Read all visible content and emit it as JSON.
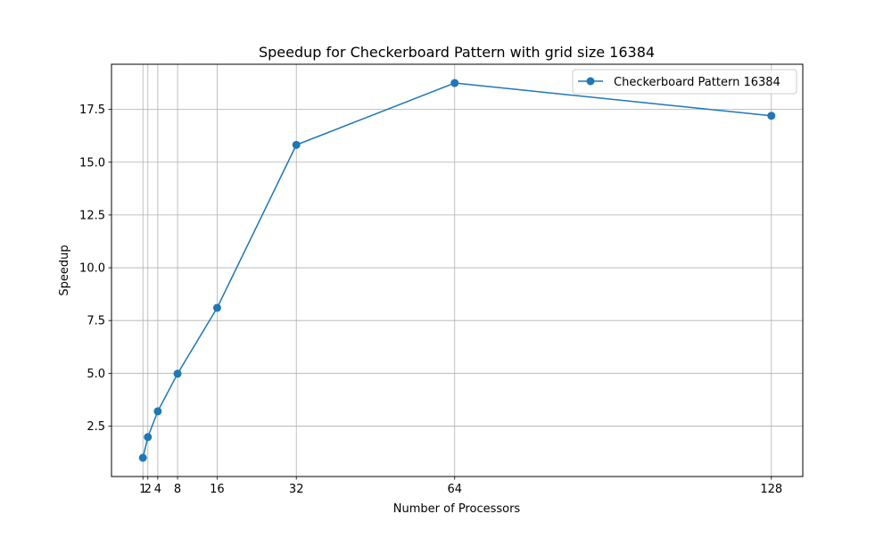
{
  "chart_data": {
    "type": "line",
    "title": "Speedup for Checkerboard Pattern with grid size 16384",
    "xlabel": "Number of Processors",
    "ylabel": "Speedup",
    "x": [
      1,
      2,
      4,
      8,
      16,
      32,
      64,
      128
    ],
    "xticks": [
      1,
      2,
      4,
      8,
      16,
      32,
      64,
      128
    ],
    "xtick_labels": [
      "1",
      "2",
      "4",
      "8",
      "16",
      "32",
      "64",
      "128"
    ],
    "yticks": [
      2.5,
      5.0,
      7.5,
      10.0,
      12.5,
      15.0,
      17.5
    ],
    "ytick_labels": [
      "2.5",
      "5.0",
      "7.5",
      "10.0",
      "12.5",
      "15.0",
      "17.5"
    ],
    "xlim": [
      -5.35,
      134.35
    ],
    "ylim": [
      0.11,
      19.64
    ],
    "grid": true,
    "legend_position": "top-right",
    "series": [
      {
        "name": "Checkerboard Pattern 16384",
        "color": "#1f77b4",
        "marker": "circle",
        "values": [
          1.0,
          1.98,
          3.2,
          4.98,
          8.1,
          15.82,
          18.75,
          17.2
        ]
      }
    ]
  }
}
